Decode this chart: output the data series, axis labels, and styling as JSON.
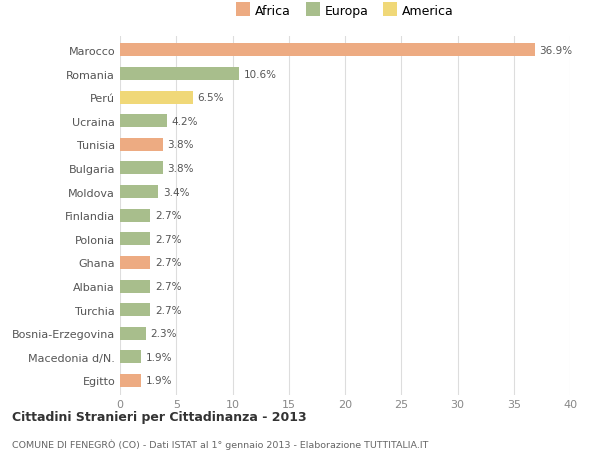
{
  "categories": [
    "Marocco",
    "Romania",
    "Perú",
    "Ucraina",
    "Tunisia",
    "Bulgaria",
    "Moldova",
    "Finlandia",
    "Polonia",
    "Ghana",
    "Albania",
    "Turchia",
    "Bosnia-Erzegovina",
    "Macedonia d/N.",
    "Egitto"
  ],
  "values": [
    36.9,
    10.6,
    6.5,
    4.2,
    3.8,
    3.8,
    3.4,
    2.7,
    2.7,
    2.7,
    2.7,
    2.7,
    2.3,
    1.9,
    1.9
  ],
  "continents": [
    "Africa",
    "Europa",
    "America",
    "Europa",
    "Africa",
    "Europa",
    "Europa",
    "Europa",
    "Europa",
    "Africa",
    "Europa",
    "Europa",
    "Europa",
    "Europa",
    "Africa"
  ],
  "colors": {
    "Africa": "#EDAB82",
    "Europa": "#A8BE8C",
    "America": "#F0D878"
  },
  "legend_labels": [
    "Africa",
    "Europa",
    "America"
  ],
  "legend_colors": [
    "#EDAB82",
    "#A8BE8C",
    "#F0D878"
  ],
  "title": "Cittadini Stranieri per Cittadinanza - 2013",
  "subtitle": "COMUNE DI FENEGRÒ (CO) - Dati ISTAT al 1° gennaio 2013 - Elaborazione TUTTITALIA.IT",
  "xlim": [
    0,
    40
  ],
  "xticks": [
    0,
    5,
    10,
    15,
    20,
    25,
    30,
    35,
    40
  ],
  "background_color": "#ffffff",
  "bar_height": 0.55
}
